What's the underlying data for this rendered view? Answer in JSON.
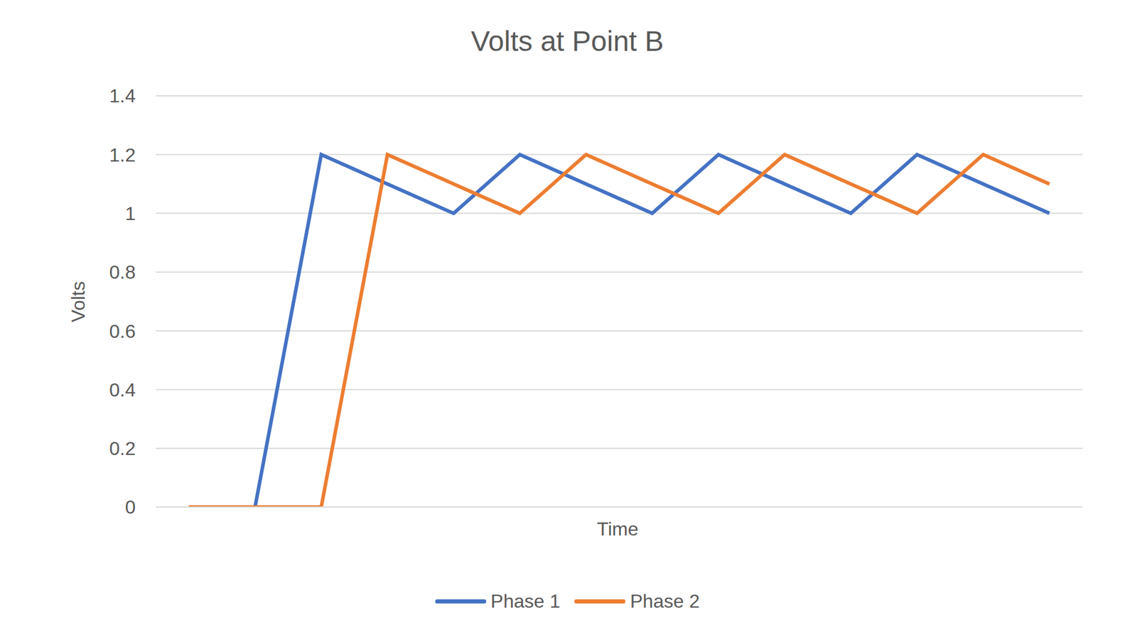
{
  "chart_data": {
    "type": "line",
    "title": "Volts at Point B",
    "x_label": "Time",
    "y_label": "Volts",
    "categories": [
      null,
      null,
      null,
      null,
      null,
      null,
      null,
      null,
      null,
      null,
      null,
      null,
      null,
      null
    ],
    "series": [
      {
        "name": "Phase 1",
        "color": "#4472c4",
        "values": [
          0,
          0,
          1.2,
          1.1,
          1.0,
          1.2,
          1.1,
          1.0,
          1.2,
          1.1,
          1.0,
          1.2,
          1.1,
          1.0
        ]
      },
      {
        "name": "Phase 2",
        "color": "#ed7d31",
        "values": [
          0,
          0,
          0,
          1.2,
          1.1,
          1.0,
          1.2,
          1.1,
          1.0,
          1.2,
          1.1,
          1.0,
          1.2,
          1.1
        ]
      }
    ],
    "ylim": [
      0,
      1.4
    ],
    "yticks": [
      0,
      0.2,
      0.4,
      0.6,
      0.8,
      1,
      1.2,
      1.4
    ],
    "grid": true,
    "legend": "bottom",
    "tick_labels": "y"
  }
}
